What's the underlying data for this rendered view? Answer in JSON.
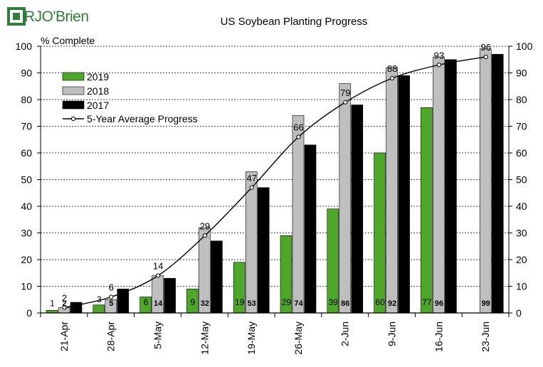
{
  "brand": {
    "logo_text": "RJO'Brien"
  },
  "colors": {
    "green": "#4ea62a",
    "gray": "#bfbfbf",
    "black": "#000000"
  },
  "chart_data": {
    "type": "bar",
    "title": "US Soybean Planting Progress",
    "ylabel": "% Complete",
    "xlabel": "",
    "ylim": [
      0,
      100
    ],
    "yticks": [
      0,
      10,
      20,
      30,
      40,
      50,
      60,
      70,
      80,
      90,
      100
    ],
    "grid": true,
    "legend_position": "top-left",
    "categories": [
      "21-Apr",
      "28-Apr",
      "5-May",
      "12-May",
      "19-May",
      "26-May",
      "2-Jun",
      "9-Jun",
      "16-Jun",
      "23-Jun"
    ],
    "series": [
      {
        "name": "2019",
        "color": "#4ea62a",
        "values": [
          1,
          3,
          6,
          9,
          19,
          29,
          39,
          60,
          77,
          null
        ],
        "labels": [
          "1",
          "3",
          "6",
          "9",
          "19",
          "29",
          "39",
          "60",
          "77",
          ""
        ]
      },
      {
        "name": "2018",
        "color": "#bfbfbf",
        "values": [
          2,
          5,
          14,
          32,
          53,
          74,
          86,
          92,
          96,
          99
        ],
        "labels": [
          "2",
          "5",
          "14",
          "32",
          "53",
          "74",
          "86",
          "92",
          "96",
          "99"
        ]
      },
      {
        "name": "2017",
        "color": "#000000",
        "values": [
          4,
          9,
          13,
          27,
          47,
          63,
          78,
          89,
          95,
          97
        ],
        "labels": []
      }
    ],
    "average": {
      "name": "5-Year Average Progress",
      "values": [
        2,
        6,
        14,
        29,
        47,
        66,
        79,
        88,
        93,
        96
      ],
      "labels": [
        "2",
        "6",
        "14",
        "29",
        "47",
        "66",
        "79",
        "88",
        "93",
        "96"
      ]
    }
  }
}
